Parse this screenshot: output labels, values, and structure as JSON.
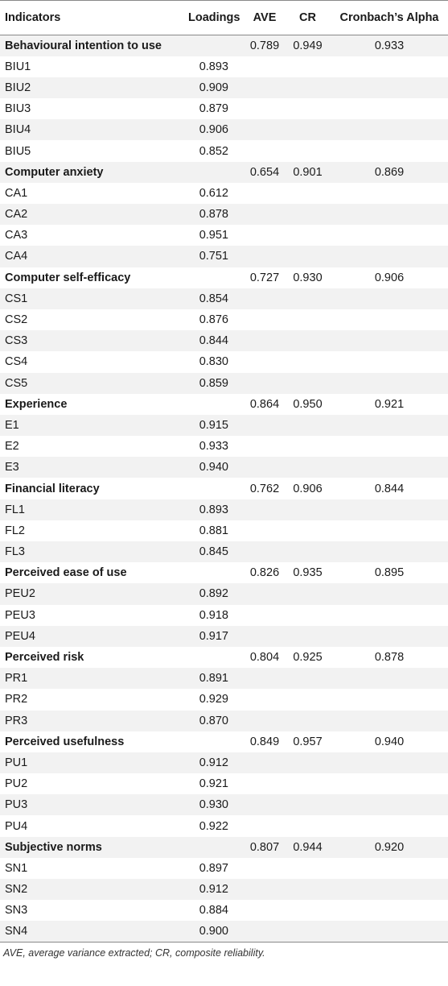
{
  "table": {
    "headers": {
      "indicators": "Indicators",
      "loadings": "Loadings",
      "ave": "AVE",
      "cr": "CR",
      "alpha": "Cronbach’s Alpha"
    },
    "groups": [
      {
        "name": "Behavioural intention to use",
        "ave": "0.789",
        "cr": "0.949",
        "alpha": "0.933",
        "items": [
          {
            "code": "BIU1",
            "loading": "0.893"
          },
          {
            "code": "BIU2",
            "loading": "0.909"
          },
          {
            "code": "BIU3",
            "loading": "0.879"
          },
          {
            "code": "BIU4",
            "loading": "0.906"
          },
          {
            "code": "BIU5",
            "loading": "0.852"
          }
        ]
      },
      {
        "name": "Computer anxiety",
        "ave": "0.654",
        "cr": "0.901",
        "alpha": "0.869",
        "items": [
          {
            "code": "CA1",
            "loading": "0.612"
          },
          {
            "code": "CA2",
            "loading": "0.878"
          },
          {
            "code": "CA3",
            "loading": "0.951"
          },
          {
            "code": "CA4",
            "loading": "0.751"
          }
        ]
      },
      {
        "name": "Computer self-efficacy",
        "ave": "0.727",
        "cr": "0.930",
        "alpha": "0.906",
        "items": [
          {
            "code": "CS1",
            "loading": "0.854"
          },
          {
            "code": "CS2",
            "loading": "0.876"
          },
          {
            "code": "CS3",
            "loading": "0.844"
          },
          {
            "code": "CS4",
            "loading": "0.830"
          },
          {
            "code": "CS5",
            "loading": "0.859"
          }
        ]
      },
      {
        "name": "Experience",
        "ave": "0.864",
        "cr": "0.950",
        "alpha": "0.921",
        "items": [
          {
            "code": "E1",
            "loading": "0.915"
          },
          {
            "code": "E2",
            "loading": "0.933"
          },
          {
            "code": "E3",
            "loading": "0.940"
          }
        ]
      },
      {
        "name": "Financial literacy",
        "ave": "0.762",
        "cr": "0.906",
        "alpha": "0.844",
        "items": [
          {
            "code": "FL1",
            "loading": "0.893"
          },
          {
            "code": "FL2",
            "loading": "0.881"
          },
          {
            "code": "FL3",
            "loading": "0.845"
          }
        ]
      },
      {
        "name": "Perceived ease of use",
        "ave": "0.826",
        "cr": "0.935",
        "alpha": "0.895",
        "items": [
          {
            "code": "PEU2",
            "loading": "0.892"
          },
          {
            "code": "PEU3",
            "loading": "0.918"
          },
          {
            "code": "PEU4",
            "loading": "0.917"
          }
        ]
      },
      {
        "name": "Perceived risk",
        "ave": "0.804",
        "cr": "0.925",
        "alpha": "0.878",
        "items": [
          {
            "code": "PR1",
            "loading": "0.891"
          },
          {
            "code": "PR2",
            "loading": "0.929"
          },
          {
            "code": "PR3",
            "loading": "0.870"
          }
        ]
      },
      {
        "name": "Perceived usefulness",
        "ave": "0.849",
        "cr": "0.957",
        "alpha": "0.940",
        "items": [
          {
            "code": "PU1",
            "loading": "0.912"
          },
          {
            "code": "PU2",
            "loading": "0.921"
          },
          {
            "code": "PU3",
            "loading": "0.930"
          },
          {
            "code": "PU4",
            "loading": "0.922"
          }
        ]
      },
      {
        "name": "Subjective norms",
        "ave": "0.807",
        "cr": "0.944",
        "alpha": "0.920",
        "items": [
          {
            "code": "SN1",
            "loading": "0.897"
          },
          {
            "code": "SN2",
            "loading": "0.912"
          },
          {
            "code": "SN3",
            "loading": "0.884"
          },
          {
            "code": "SN4",
            "loading": "0.900"
          }
        ]
      }
    ]
  },
  "footnote": "AVE, average variance extracted; CR, composite reliability.",
  "colors": {
    "stripe": "#f2f2f2",
    "rule": "#888888"
  }
}
